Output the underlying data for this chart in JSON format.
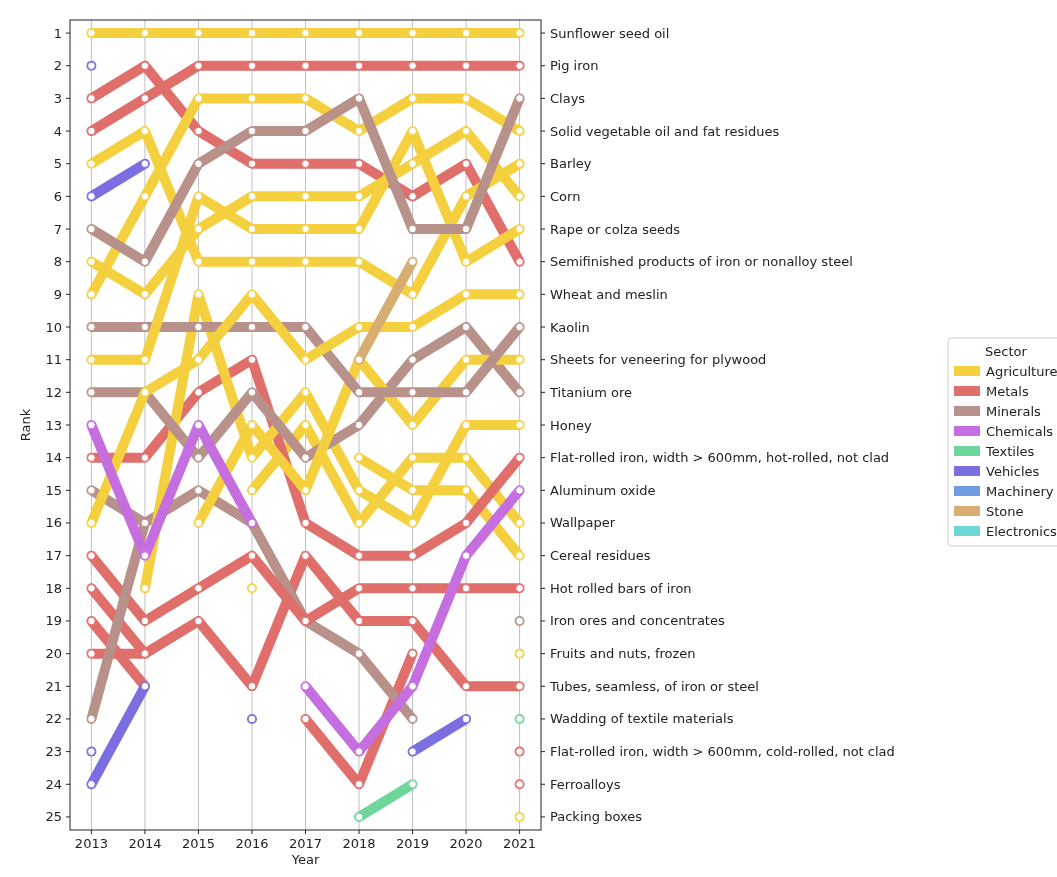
{
  "chart_data": {
    "type": "line",
    "xlabel": "Year",
    "ylabel": "Rank",
    "legend_title": "Sector",
    "legend": "right",
    "grid": "x",
    "marker": "circle",
    "line_style": "solid",
    "x": [
      2013,
      2014,
      2015,
      2016,
      2017,
      2018,
      2019,
      2020,
      2021
    ],
    "xlim": [
      2012.6,
      2021.4
    ],
    "xticks": [
      2013,
      2014,
      2015,
      2016,
      2017,
      2018,
      2019,
      2020,
      2021
    ],
    "ylim": [
      25.4,
      0.6
    ],
    "yticks": [
      1,
      2,
      3,
      4,
      5,
      6,
      7,
      8,
      9,
      10,
      11,
      12,
      13,
      14,
      15,
      16,
      17,
      18,
      19,
      20,
      21,
      22,
      23,
      24,
      25
    ],
    "series": [
      {
        "name": "Agriculture",
        "color": "#f4d03f",
        "values": [
          null,
          null,
          null,
          null,
          null,
          null,
          null,
          null,
          null
        ]
      },
      {
        "name": "Metals",
        "color": "#e06e6a",
        "values": [
          null,
          null,
          null,
          null,
          null,
          null,
          null,
          null,
          null
        ]
      },
      {
        "name": "Minerals",
        "color": "#b8918a",
        "values": [
          null,
          null,
          null,
          null,
          null,
          null,
          null,
          null,
          null
        ]
      },
      {
        "name": "Chemicals",
        "color": "#c46ee0",
        "values": [
          null,
          null,
          null,
          null,
          null,
          null,
          null,
          null,
          null
        ]
      },
      {
        "name": "Textiles",
        "color": "#6fd69b",
        "values": [
          null,
          null,
          null,
          null,
          null,
          null,
          null,
          null,
          null
        ]
      },
      {
        "name": "Vehicles",
        "color": "#7b6ee0",
        "values": [
          null,
          null,
          null,
          null,
          null,
          null,
          null,
          null,
          null
        ]
      },
      {
        "name": "Machinery",
        "color": "#6f9be0",
        "values": [
          null,
          null,
          null,
          null,
          null,
          null,
          null,
          null,
          null
        ]
      },
      {
        "name": "Stone",
        "color": "#d8ad72",
        "values": [
          null,
          null,
          null,
          null,
          null,
          null,
          null,
          null,
          null
        ]
      },
      {
        "name": "Electronics",
        "color": "#6fd6d6",
        "values": [
          null,
          null,
          null,
          null,
          null,
          null,
          null,
          null,
          null
        ]
      },
      {
        "color": "#7b6ee0",
        "values": [
          2,
          null,
          null,
          null,
          null,
          null,
          null,
          null,
          null
        ]
      },
      {
        "color": "#7b6ee0",
        "values": [
          6,
          5,
          null,
          null,
          null,
          null,
          null,
          null,
          null
        ]
      },
      {
        "color": "#7b6ee0",
        "values": [
          23,
          null,
          null,
          null,
          null,
          null,
          null,
          null,
          null
        ]
      },
      {
        "color": "#7b6ee0",
        "values": [
          24,
          21,
          null,
          null,
          null,
          null,
          null,
          null,
          null
        ]
      },
      {
        "color": "#7b6ee0",
        "values": [
          null,
          null,
          null,
          22,
          null,
          null,
          null,
          null,
          null
        ]
      },
      {
        "color": "#7b6ee0",
        "values": [
          null,
          null,
          null,
          null,
          null,
          null,
          23,
          22,
          null
        ]
      },
      {
        "color": "#c46ee0",
        "values": [
          13,
          17,
          13,
          16,
          null,
          null,
          null,
          null,
          null
        ]
      },
      {
        "color": "#b8918a",
        "values": [
          22,
          16,
          null,
          null,
          null,
          null,
          null,
          null,
          null
        ]
      },
      {
        "color": "#d8ad72",
        "values": [
          null,
          null,
          null,
          null,
          null,
          11,
          8,
          null,
          null
        ]
      },
      {
        "name": "Sunflower seed oil",
        "color": "#f4d03f",
        "values": [
          1,
          1,
          1,
          1,
          1,
          1,
          1,
          1,
          1
        ]
      },
      {
        "name": "Pig iron",
        "color": "#e06e6a",
        "values": [
          4,
          3,
          2,
          2,
          2,
          2,
          2,
          2,
          2
        ]
      },
      {
        "name": "Clays",
        "color": "#b8918a",
        "values": [
          7,
          8,
          5,
          4,
          4,
          3,
          7,
          7,
          3
        ]
      },
      {
        "name": "Solid vegetable oil and fat residues",
        "color": "#f4d03f",
        "values": [
          9,
          6,
          3,
          3,
          3,
          4,
          3,
          3,
          4
        ]
      },
      {
        "name": "Barley",
        "color": "#f4d03f",
        "values": [
          5,
          4,
          8,
          8,
          8,
          8,
          9,
          6,
          5
        ]
      },
      {
        "name": "Corn",
        "color": "#f4d03f",
        "values": [
          8,
          9,
          7,
          6,
          6,
          6,
          5,
          4,
          6
        ]
      },
      {
        "name": "Rape or colza seeds",
        "color": "#f4d03f",
        "values": [
          11,
          11,
          6,
          7,
          7,
          7,
          4,
          8,
          7
        ]
      },
      {
        "name": "Semifinished products of iron or nonalloy steel",
        "color": "#e06e6a",
        "values": [
          3,
          2,
          4,
          5,
          5,
          5,
          6,
          5,
          8
        ]
      },
      {
        "name": "Wheat and meslin",
        "color": "#f4d03f",
        "values": [
          16,
          12,
          11,
          9,
          11,
          10,
          10,
          9,
          9
        ]
      },
      {
        "name": "Kaolin",
        "color": "#b8918a",
        "values": [
          10,
          10,
          10,
          10,
          10,
          12,
          12,
          12,
          10
        ]
      },
      {
        "name": "Sheets for veneering for plywood",
        "color": "#f4d03f",
        "values": [
          null,
          null,
          16,
          13,
          15,
          11,
          13,
          11,
          11
        ]
      },
      {
        "name": "Titanium ore",
        "color": "#b8918a",
        "values": [
          12,
          12,
          14,
          12,
          14,
          13,
          11,
          10,
          12
        ]
      },
      {
        "name": "Honey",
        "color": "#f4d03f",
        "values": [
          null,
          18,
          9,
          14,
          12,
          15,
          16,
          13,
          13
        ]
      },
      {
        "name": "Flat-rolled iron, width > 600mm, hot-rolled, not clad",
        "color": "#e06e6a",
        "values": [
          14,
          14,
          12,
          11,
          16,
          17,
          17,
          16,
          14
        ]
      },
      {
        "name": "Aluminum oxide",
        "color": "#c46ee0",
        "values": [
          null,
          null,
          null,
          null,
          21,
          23,
          21,
          17,
          15
        ]
      },
      {
        "name": "Wallpaper",
        "color": "#f4d03f",
        "values": [
          null,
          null,
          null,
          15,
          13,
          16,
          14,
          14,
          16
        ]
      },
      {
        "name": "Cereal residues",
        "color": "#f4d03f",
        "values": [
          null,
          null,
          null,
          18,
          null,
          14,
          15,
          15,
          17
        ]
      },
      {
        "name": "Hot rolled bars of iron",
        "color": "#e06e6a",
        "values": [
          17,
          19,
          18,
          17,
          19,
          18,
          18,
          18,
          18
        ]
      },
      {
        "name": "Iron ores and concentrates",
        "color": "#b8918a",
        "values": [
          15,
          16,
          15,
          16,
          19,
          20,
          22,
          null,
          19
        ]
      },
      {
        "name": "Fruits and nuts, frozen",
        "color": "#f4d03f",
        "values": [
          null,
          null,
          null,
          null,
          null,
          null,
          null,
          null,
          20
        ]
      },
      {
        "name": "Tubes, seamless, of iron or steel",
        "color": "#e06e6a",
        "values": [
          18,
          20,
          19,
          21,
          17,
          19,
          19,
          21,
          21
        ]
      },
      {
        "name": "Wadding of textile materials",
        "color": "#6fd69b",
        "values": [
          null,
          null,
          null,
          null,
          null,
          25,
          24,
          null,
          22
        ]
      },
      {
        "name": "Flat-rolled iron, width > 600mm, cold-rolled, not clad",
        "color": "#e06e6a",
        "values": [
          19,
          21,
          null,
          null,
          22,
          24,
          20,
          null,
          23
        ]
      },
      {
        "name": "Ferroalloys",
        "color": "#e06e6a",
        "values": [
          20,
          20,
          null,
          null,
          null,
          null,
          null,
          null,
          24
        ]
      },
      {
        "name": "Packing boxes",
        "color": "#f4d03f",
        "values": [
          null,
          null,
          null,
          null,
          null,
          null,
          null,
          null,
          25
        ]
      }
    ]
  }
}
